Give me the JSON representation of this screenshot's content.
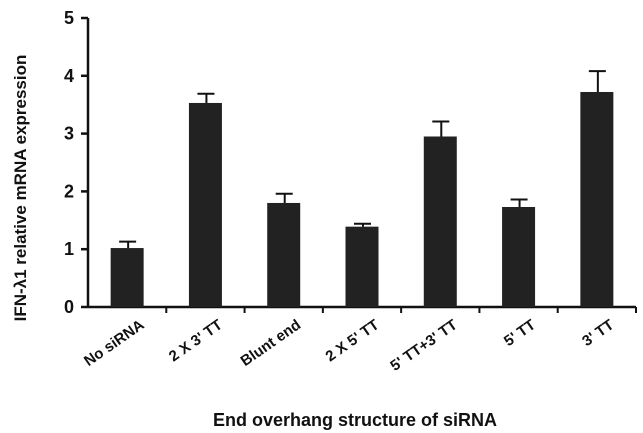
{
  "chart_data": {
    "type": "bar",
    "categories": [
      "No siRNA",
      "2 X 3' TT",
      "Blunt end",
      "2 X 5' TT",
      "5' TT+3' TT",
      "5' TT",
      "3' TT"
    ],
    "values": [
      1.02,
      3.53,
      1.8,
      1.39,
      2.95,
      1.73,
      3.72
    ],
    "errors": [
      0.11,
      0.16,
      0.16,
      0.05,
      0.26,
      0.13,
      0.36
    ],
    "xlabel": "End overhang structure of siRNA",
    "ylabel": "IFN-λ1 relative mRNA expression",
    "ylim": [
      0,
      5
    ],
    "yticks": [
      "0",
      "1",
      "2",
      "3",
      "4",
      "5"
    ],
    "bar_color": "#222222",
    "grid": false,
    "legend": "none"
  }
}
